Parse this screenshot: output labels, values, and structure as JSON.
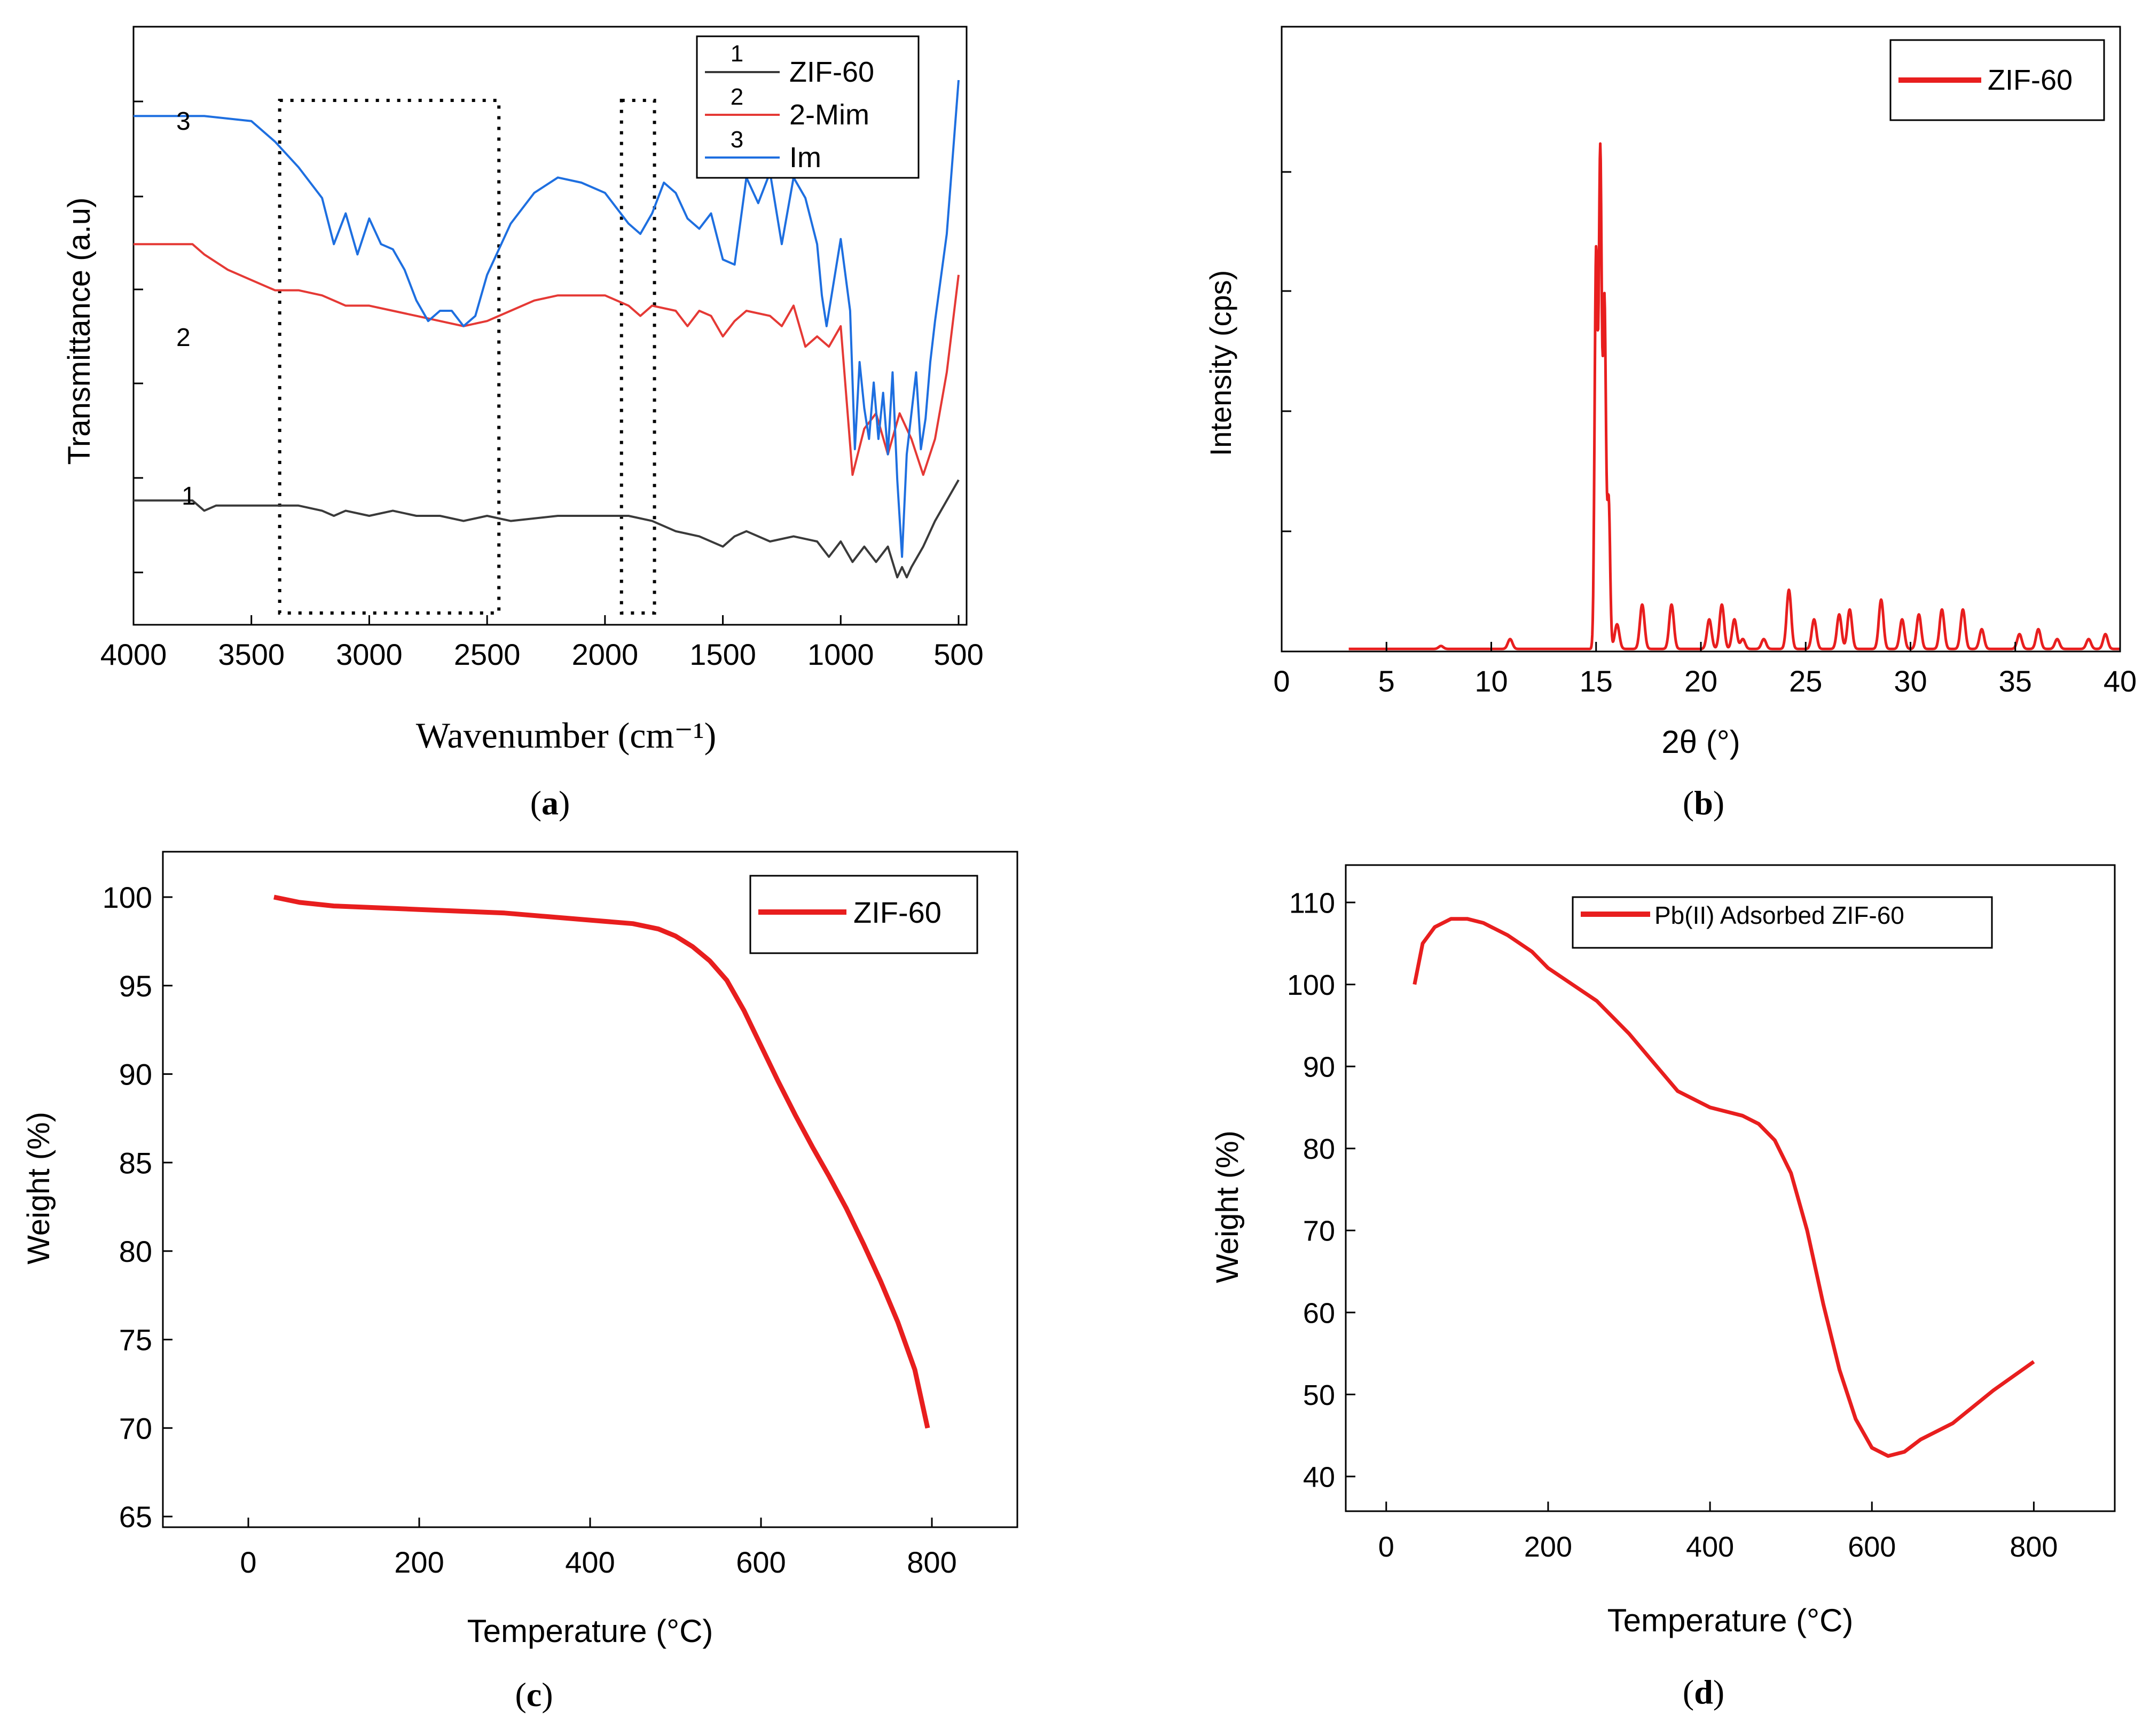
{
  "chart_data": [
    {
      "panel": "a",
      "caption": "a",
      "type": "line",
      "xlabel": "Wavenumber (cm⁻¹)",
      "ylabel": "Transmittance (a.u)",
      "xlim": [
        4000,
        500
      ],
      "ylim": [
        0,
        10
      ],
      "xticks": [
        "4000",
        "3500",
        "3000",
        "2500",
        "2000",
        "1500",
        "1000",
        "500"
      ],
      "highlight_regions": [
        [
          3380,
          2450
        ],
        [
          1930,
          1790
        ]
      ],
      "legend": {
        "position": "top-right",
        "entries": [
          {
            "number": "1",
            "name": "ZIF-60"
          },
          {
            "number": "2",
            "name": "2-Mim"
          },
          {
            "number": "3",
            "name": "Im"
          }
        ]
      },
      "series": [
        {
          "name": "ZIF-60",
          "label": "1",
          "color": "#3a3a3a",
          "x": [
            4000,
            3750,
            3700,
            3650,
            3500,
            3300,
            3200,
            3150,
            3100,
            3000,
            2900,
            2800,
            2700,
            2600,
            2500,
            2400,
            2200,
            2000,
            1900,
            1800,
            1700,
            1600,
            1500,
            1450,
            1400,
            1300,
            1200,
            1100,
            1050,
            1000,
            950,
            900,
            850,
            800,
            760,
            740,
            720,
            700,
            650,
            600,
            550,
            500
          ],
          "values": [
            1.8,
            1.8,
            1.6,
            1.7,
            1.7,
            1.7,
            1.6,
            1.5,
            1.6,
            1.5,
            1.6,
            1.5,
            1.5,
            1.4,
            1.5,
            1.4,
            1.5,
            1.5,
            1.5,
            1.4,
            1.2,
            1.1,
            0.9,
            1.1,
            1.2,
            1.0,
            1.1,
            1.0,
            0.7,
            1.0,
            0.6,
            0.9,
            0.6,
            0.9,
            0.3,
            0.5,
            0.3,
            0.5,
            0.9,
            1.4,
            1.8,
            2.2
          ]
        },
        {
          "name": "2-Mim",
          "label": "2",
          "color": "#e53935",
          "x": [
            4000,
            3750,
            3700,
            3600,
            3500,
            3400,
            3300,
            3200,
            3100,
            3000,
            2900,
            2800,
            2700,
            2600,
            2500,
            2400,
            2300,
            2200,
            2100,
            2000,
            1900,
            1850,
            1800,
            1700,
            1650,
            1600,
            1550,
            1500,
            1450,
            1400,
            1300,
            1250,
            1200,
            1150,
            1100,
            1050,
            1000,
            950,
            900,
            850,
            800,
            750,
            700,
            650,
            600,
            550,
            500
          ],
          "values": [
            6.8,
            6.8,
            6.6,
            6.3,
            6.1,
            5.9,
            5.9,
            5.8,
            5.6,
            5.6,
            5.5,
            5.4,
            5.3,
            5.2,
            5.3,
            5.5,
            5.7,
            5.8,
            5.8,
            5.8,
            5.6,
            5.4,
            5.6,
            5.5,
            5.2,
            5.5,
            5.4,
            5.0,
            5.3,
            5.5,
            5.4,
            5.2,
            5.6,
            4.8,
            5.0,
            4.8,
            5.2,
            2.3,
            3.2,
            3.5,
            2.7,
            3.5,
            3.0,
            2.3,
            3.0,
            4.3,
            6.2
          ]
        },
        {
          "name": "Im",
          "label": "3",
          "color": "#1e6fe0",
          "x": [
            4000,
            3700,
            3500,
            3400,
            3300,
            3200,
            3150,
            3100,
            3050,
            3000,
            2950,
            2900,
            2850,
            2800,
            2750,
            2700,
            2650,
            2600,
            2550,
            2500,
            2400,
            2300,
            2200,
            2100,
            2000,
            1900,
            1850,
            1800,
            1750,
            1700,
            1650,
            1600,
            1550,
            1500,
            1450,
            1400,
            1350,
            1300,
            1250,
            1200,
            1150,
            1100,
            1080,
            1060,
            1000,
            960,
            940,
            920,
            900,
            880,
            860,
            840,
            820,
            800,
            780,
            760,
            740,
            720,
            700,
            680,
            660,
            640,
            620,
            600,
            550,
            500
          ],
          "values": [
            9.3,
            9.3,
            9.2,
            8.8,
            8.3,
            7.7,
            6.8,
            7.4,
            6.6,
            7.3,
            6.8,
            6.7,
            6.3,
            5.7,
            5.3,
            5.5,
            5.5,
            5.2,
            5.4,
            6.2,
            7.2,
            7.8,
            8.1,
            8.0,
            7.8,
            7.2,
            7.0,
            7.4,
            8.0,
            7.8,
            7.3,
            7.1,
            7.4,
            6.5,
            6.4,
            8.1,
            7.6,
            8.2,
            6.8,
            8.1,
            7.7,
            6.8,
            5.8,
            5.2,
            6.9,
            5.5,
            2.8,
            4.5,
            3.6,
            3.0,
            4.1,
            3.0,
            3.9,
            2.7,
            4.3,
            2.2,
            0.7,
            2.7,
            3.5,
            4.3,
            2.8,
            3.4,
            4.5,
            5.3,
            7.0,
            10.0
          ]
        }
      ]
    },
    {
      "panel": "b",
      "caption": "b",
      "type": "line",
      "xlabel": "2θ (°)",
      "ylabel": "Intensity (cps)",
      "xlim": [
        0,
        40
      ],
      "ylim": [
        0,
        100
      ],
      "xticks": [
        "0",
        "5",
        "10",
        "15",
        "20",
        "25",
        "30",
        "35",
        "40"
      ],
      "legend": {
        "position": "top-right",
        "entries": [
          {
            "name": "ZIF-60"
          }
        ]
      },
      "series": [
        {
          "name": "ZIF-60",
          "color": "#e81e1e",
          "peaks": [
            [
              7.6,
              0.6
            ],
            [
              10.9,
              2
            ],
            [
              15.0,
              80
            ],
            [
              15.2,
              100
            ],
            [
              15.4,
              70
            ],
            [
              15.6,
              30
            ],
            [
              16.0,
              5
            ],
            [
              17.2,
              9
            ],
            [
              18.6,
              9
            ],
            [
              20.4,
              6
            ],
            [
              21.0,
              9
            ],
            [
              21.6,
              6
            ],
            [
              22.0,
              2
            ],
            [
              23.0,
              2
            ],
            [
              24.2,
              12
            ],
            [
              25.4,
              6
            ],
            [
              26.6,
              7
            ],
            [
              27.1,
              8
            ],
            [
              28.6,
              10
            ],
            [
              29.6,
              6
            ],
            [
              30.4,
              7
            ],
            [
              31.5,
              8
            ],
            [
              32.5,
              8
            ],
            [
              33.4,
              4
            ],
            [
              35.2,
              3
            ],
            [
              36.1,
              4
            ],
            [
              37.0,
              2
            ],
            [
              38.5,
              2
            ],
            [
              39.3,
              3
            ]
          ]
        }
      ]
    },
    {
      "panel": "c",
      "caption": "c",
      "type": "line",
      "xlabel": "Temperature (°C)",
      "ylabel": "Weight (%)",
      "xlim": [
        -100,
        900
      ],
      "ylim": [
        65,
        102
      ],
      "xticks": [
        "0",
        "200",
        "400",
        "600",
        "800"
      ],
      "yticks": [
        "65",
        "70",
        "75",
        "80",
        "85",
        "90",
        "95",
        "100"
      ],
      "legend": {
        "position": "top-right",
        "entries": [
          {
            "name": "ZIF-60"
          }
        ]
      },
      "series": [
        {
          "name": "ZIF-60",
          "color": "#e81e1e",
          "x": [
            30,
            60,
            100,
            150,
            200,
            250,
            300,
            350,
            400,
            450,
            480,
            500,
            520,
            540,
            560,
            580,
            600,
            620,
            640,
            660,
            680,
            700,
            720,
            740,
            760,
            780,
            795
          ],
          "values": [
            100,
            99.7,
            99.5,
            99.4,
            99.3,
            99.2,
            99.1,
            98.9,
            98.7,
            98.5,
            98.2,
            97.8,
            97.2,
            96.4,
            95.3,
            93.6,
            91.6,
            89.6,
            87.7,
            85.9,
            84.2,
            82.4,
            80.4,
            78.3,
            76.0,
            73.3,
            70.0
          ]
        }
      ]
    },
    {
      "panel": "d",
      "caption": "d",
      "type": "line",
      "xlabel": "Temperature (°C)",
      "ylabel": "Weight (%)",
      "xlim": [
        -50,
        900
      ],
      "ylim": [
        35,
        115
      ],
      "xticks": [
        "0",
        "200",
        "400",
        "600",
        "800"
      ],
      "yticks": [
        "40",
        "50",
        "60",
        "70",
        "80",
        "90",
        "100",
        "110"
      ],
      "legend": {
        "position": "top-right",
        "entries": [
          {
            "name": "Pb(II) Adsorbed ZIF-60"
          }
        ]
      },
      "series": [
        {
          "name": "Pb(II) Adsorbed ZIF-60",
          "color": "#e81e1e",
          "x": [
            35,
            45,
            60,
            80,
            100,
            120,
            150,
            180,
            200,
            230,
            260,
            300,
            330,
            360,
            400,
            440,
            460,
            480,
            500,
            520,
            540,
            560,
            580,
            600,
            620,
            640,
            660,
            700,
            750,
            800
          ],
          "values": [
            100,
            105,
            107,
            108,
            108,
            107.5,
            106,
            104,
            102,
            100,
            98,
            94,
            90.5,
            87,
            85,
            84,
            83,
            81,
            77,
            70,
            61,
            53,
            47,
            43.5,
            42.5,
            43,
            44.5,
            46.5,
            50.5,
            54
          ]
        }
      ]
    }
  ]
}
